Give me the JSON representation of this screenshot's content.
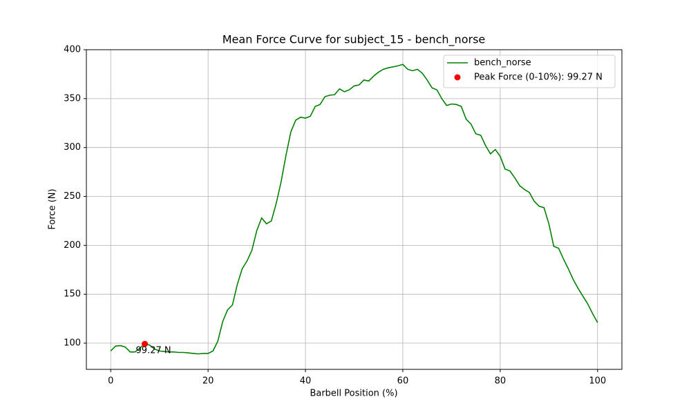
{
  "chart_data": {
    "type": "line",
    "title": "Mean Force Curve for subject_15 - bench_norse",
    "x_label": "Barbell Position (%)",
    "y_label": "Force (N)",
    "x": [
      0,
      1,
      2,
      3,
      4,
      5,
      6,
      7,
      8,
      9,
      10,
      11,
      12,
      13,
      14,
      15,
      16,
      17,
      18,
      19,
      20,
      21,
      22,
      23,
      24,
      25,
      26,
      27,
      28,
      29,
      30,
      31,
      32,
      33,
      34,
      35,
      36,
      37,
      38,
      39,
      40,
      41,
      42,
      43,
      44,
      45,
      46,
      47,
      48,
      49,
      50,
      51,
      52,
      53,
      54,
      55,
      56,
      57,
      58,
      59,
      60,
      61,
      62,
      63,
      64,
      65,
      66,
      67,
      68,
      69,
      70,
      71,
      72,
      73,
      74,
      75,
      76,
      77,
      78,
      79,
      80,
      81,
      82,
      83,
      84,
      85,
      86,
      87,
      88,
      89,
      90,
      91,
      92,
      93,
      94,
      95,
      96,
      97,
      98,
      99,
      100
    ],
    "series": [
      {
        "name": "bench_norse",
        "color": "green",
        "values": [
          92,
          97,
          97.5,
          96,
          91,
          91,
          95,
          99.3,
          98,
          94,
          92,
          91.5,
          91,
          91,
          90.5,
          90.5,
          90,
          89.5,
          89,
          89.5,
          89.5,
          92,
          102,
          122,
          134,
          139,
          160,
          176,
          184,
          195,
          215,
          228,
          222,
          225,
          243,
          265,
          292,
          316,
          328,
          331,
          330,
          332,
          342,
          344,
          352,
          353.5,
          354,
          360,
          357,
          359,
          363,
          364,
          369,
          368,
          373,
          377,
          380,
          381.5,
          382.5,
          383.5,
          385,
          380,
          378.5,
          380,
          376,
          369,
          361,
          359,
          350,
          343,
          344.5,
          344,
          342,
          329,
          324,
          314,
          312.5,
          302,
          293.5,
          298,
          291,
          278,
          276,
          269,
          261,
          257,
          254,
          245,
          240,
          238.5,
          222,
          199,
          197,
          186,
          176,
          165,
          156,
          148,
          140,
          130,
          121
        ]
      },
      {
        "name": "Peak Force (0-10%): 99.27 N",
        "color": "red",
        "type": "scatter",
        "x": [
          7
        ],
        "values": [
          99.27
        ],
        "annotation": "99.27 N"
      }
    ],
    "xlim": [
      -5,
      105
    ],
    "ylim": [
      73.2,
      400
    ],
    "xticks": [
      0,
      20,
      40,
      60,
      80,
      100
    ],
    "yticks": [
      100,
      150,
      200,
      250,
      300,
      350,
      400
    ],
    "grid": true,
    "legend": "upper right"
  }
}
